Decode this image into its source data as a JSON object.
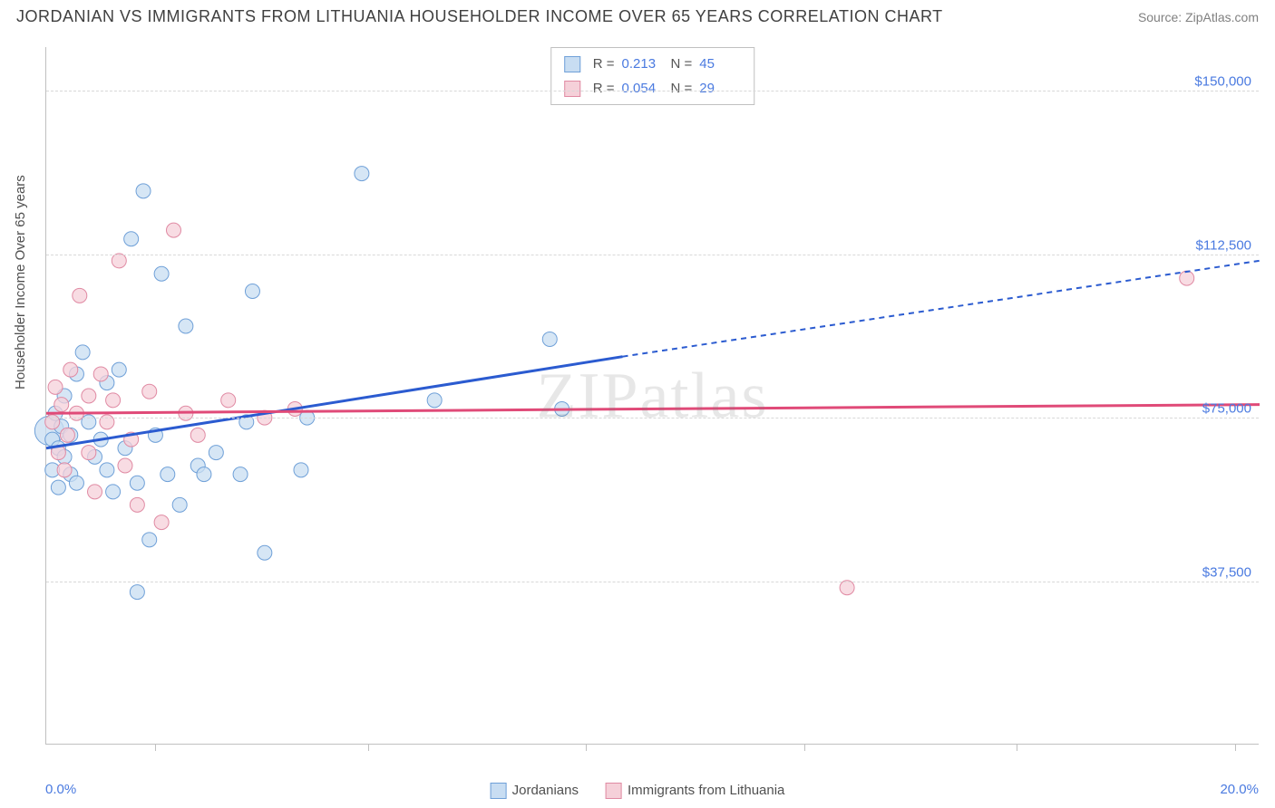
{
  "header": {
    "title": "JORDANIAN VS IMMIGRANTS FROM LITHUANIA HOUSEHOLDER INCOME OVER 65 YEARS CORRELATION CHART",
    "source": "Source: ZipAtlas.com"
  },
  "chart": {
    "type": "scatter",
    "y_axis_label": "Householder Income Over 65 years",
    "x_min": 0.0,
    "x_max": 20.0,
    "x_min_label": "0.0%",
    "x_max_label": "20.0%",
    "y_min": 0,
    "y_max": 160000,
    "y_gridlines": [
      {
        "value": 37500,
        "label": "$37,500"
      },
      {
        "value": 75000,
        "label": "$75,000"
      },
      {
        "value": 112500,
        "label": "$112,500"
      },
      {
        "value": 150000,
        "label": "$150,000"
      }
    ],
    "x_ticks_pct": [
      1.8,
      5.3,
      8.9,
      12.5,
      16.0,
      19.6
    ],
    "background_color": "#ffffff",
    "grid_color": "#d8d8d8",
    "axis_color": "#c0c0c0",
    "marker_radius": 8,
    "watermark": "ZIPatlas",
    "series": [
      {
        "name": "Jordanians",
        "fill": "#c8ddf2",
        "stroke": "#6fa0d8",
        "trend_color": "#2b5bd0",
        "stats": {
          "R_label": "R =",
          "R": "0.213",
          "N_label": "N =",
          "N": "45"
        },
        "trend": {
          "x1": 0,
          "y1": 68000,
          "x2": 9.5,
          "y2": 89000,
          "ext_x2": 20,
          "ext_y2": 111000
        },
        "points": [
          {
            "x": 0.05,
            "y": 72000,
            "r": 16
          },
          {
            "x": 0.1,
            "y": 63000
          },
          {
            "x": 0.1,
            "y": 70000
          },
          {
            "x": 0.15,
            "y": 76000
          },
          {
            "x": 0.2,
            "y": 68000
          },
          {
            "x": 0.2,
            "y": 59000
          },
          {
            "x": 0.25,
            "y": 73000
          },
          {
            "x": 0.3,
            "y": 66000
          },
          {
            "x": 0.3,
            "y": 80000
          },
          {
            "x": 0.4,
            "y": 62000
          },
          {
            "x": 0.4,
            "y": 71000
          },
          {
            "x": 0.5,
            "y": 60000
          },
          {
            "x": 0.5,
            "y": 85000
          },
          {
            "x": 0.6,
            "y": 90000
          },
          {
            "x": 0.7,
            "y": 74000
          },
          {
            "x": 0.8,
            "y": 66000
          },
          {
            "x": 0.9,
            "y": 70000
          },
          {
            "x": 1.0,
            "y": 63000
          },
          {
            "x": 1.0,
            "y": 83000
          },
          {
            "x": 1.1,
            "y": 58000
          },
          {
            "x": 1.2,
            "y": 86000
          },
          {
            "x": 1.3,
            "y": 68000
          },
          {
            "x": 1.4,
            "y": 116000
          },
          {
            "x": 1.5,
            "y": 60000
          },
          {
            "x": 1.5,
            "y": 35000
          },
          {
            "x": 1.6,
            "y": 127000
          },
          {
            "x": 1.7,
            "y": 47000
          },
          {
            "x": 1.8,
            "y": 71000
          },
          {
            "x": 1.9,
            "y": 108000
          },
          {
            "x": 2.0,
            "y": 62000
          },
          {
            "x": 2.2,
            "y": 55000
          },
          {
            "x": 2.3,
            "y": 96000
          },
          {
            "x": 2.5,
            "y": 64000
          },
          {
            "x": 2.6,
            "y": 62000
          },
          {
            "x": 2.8,
            "y": 67000
          },
          {
            "x": 3.2,
            "y": 62000
          },
          {
            "x": 3.3,
            "y": 74000
          },
          {
            "x": 3.4,
            "y": 104000
          },
          {
            "x": 3.6,
            "y": 44000
          },
          {
            "x": 4.2,
            "y": 63000
          },
          {
            "x": 4.3,
            "y": 75000
          },
          {
            "x": 5.2,
            "y": 131000
          },
          {
            "x": 6.4,
            "y": 79000
          },
          {
            "x": 8.3,
            "y": 93000
          },
          {
            "x": 8.5,
            "y": 77000
          }
        ]
      },
      {
        "name": "Immigrants from Lithuania",
        "fill": "#f5d0d9",
        "stroke": "#e08aa3",
        "trend_color": "#e04a78",
        "stats": {
          "R_label": "R =",
          "R": "0.054",
          "N_label": "N =",
          "N": "29"
        },
        "trend": {
          "x1": 0,
          "y1": 76000,
          "x2": 20,
          "y2": 78000
        },
        "points": [
          {
            "x": 0.1,
            "y": 74000
          },
          {
            "x": 0.15,
            "y": 82000
          },
          {
            "x": 0.2,
            "y": 67000
          },
          {
            "x": 0.25,
            "y": 78000
          },
          {
            "x": 0.3,
            "y": 63000
          },
          {
            "x": 0.35,
            "y": 71000
          },
          {
            "x": 0.4,
            "y": 86000
          },
          {
            "x": 0.5,
            "y": 76000
          },
          {
            "x": 0.55,
            "y": 103000
          },
          {
            "x": 0.7,
            "y": 80000
          },
          {
            "x": 0.7,
            "y": 67000
          },
          {
            "x": 0.8,
            "y": 58000
          },
          {
            "x": 0.9,
            "y": 85000
          },
          {
            "x": 1.0,
            "y": 74000
          },
          {
            "x": 1.1,
            "y": 79000
          },
          {
            "x": 1.2,
            "y": 111000
          },
          {
            "x": 1.3,
            "y": 64000
          },
          {
            "x": 1.4,
            "y": 70000
          },
          {
            "x": 1.5,
            "y": 55000
          },
          {
            "x": 1.7,
            "y": 81000
          },
          {
            "x": 1.9,
            "y": 51000
          },
          {
            "x": 2.1,
            "y": 118000
          },
          {
            "x": 2.3,
            "y": 76000
          },
          {
            "x": 2.5,
            "y": 71000
          },
          {
            "x": 3.0,
            "y": 79000
          },
          {
            "x": 3.6,
            "y": 75000
          },
          {
            "x": 4.1,
            "y": 77000
          },
          {
            "x": 13.2,
            "y": 36000
          },
          {
            "x": 18.8,
            "y": 107000
          }
        ]
      }
    ],
    "legend_bottom": [
      {
        "label": "Jordanians",
        "fill": "#c8ddf2",
        "stroke": "#6fa0d8"
      },
      {
        "label": "Immigrants from Lithuania",
        "fill": "#f5d0d9",
        "stroke": "#e08aa3"
      }
    ]
  }
}
